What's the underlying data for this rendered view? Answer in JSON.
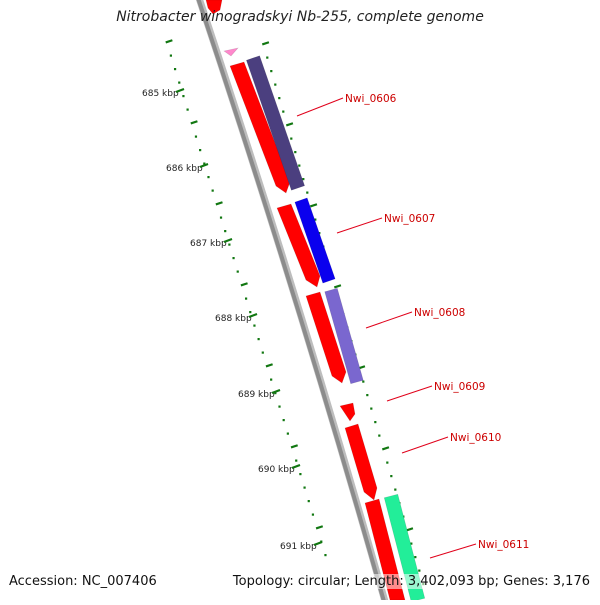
{
  "title": "Nitrobacter winogradskyi Nb-255, complete genome",
  "accession": "Accession: NC_007406",
  "summary": "Topology: circular; Length: 3,402,093 bp; Genes: 3,176",
  "scale_labels": [
    "685 kbp",
    "686 kbp",
    "687 kbp",
    "688 kbp",
    "689 kbp",
    "690 kbp",
    "691 kbp"
  ],
  "genes": [
    {
      "label": "Nwi_0606"
    },
    {
      "label": "Nwi_0607"
    },
    {
      "label": "Nwi_0608"
    },
    {
      "label": "Nwi_0609"
    },
    {
      "label": "Nwi_0610"
    },
    {
      "label": "Nwi_0611"
    }
  ],
  "colors": {
    "forward_gene": "#ff0000",
    "label_line": "#e0001a",
    "label_text": "#cc0000",
    "tick": "#117711",
    "backbone": "#8c8c8c",
    "cds_0606": "#4b3f7f",
    "cds_0607": "#0a00ee",
    "cds_0608": "#7a67cf",
    "cds_0611": "#22ee99",
    "partial": "#ff88cc"
  }
}
